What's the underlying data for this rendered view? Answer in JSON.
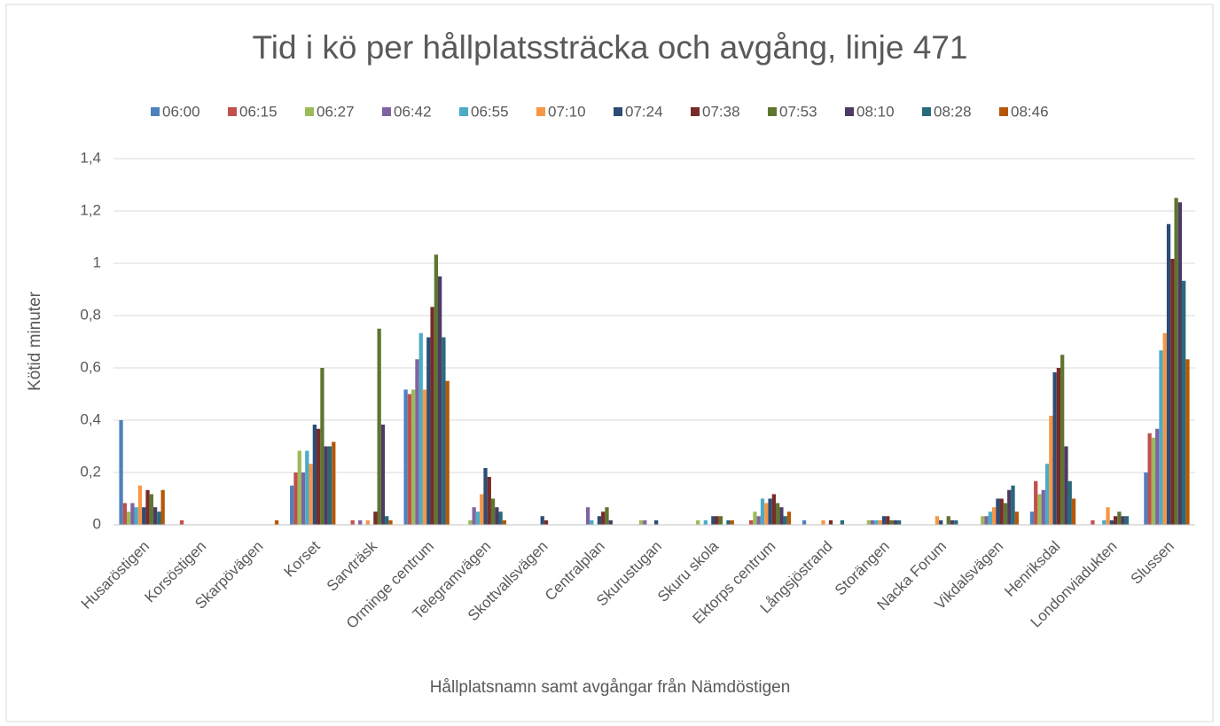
{
  "chart_data": {
    "type": "bar",
    "title": "Tid i kö per hållplatssträcka och avgång, linje 471",
    "x_label": "Hållplatsnamn samt avgångar från Nämdöstigen",
    "y_label": "Kötid minuter",
    "categories": [
      "Husaröstigen",
      "Korsöstigen",
      "Skarpövägen",
      "Korset",
      "Sarvträsk",
      "Orminge centrum",
      "Telegramvägen",
      "Skottvallsvägen",
      "Centralplan",
      "Skurustugan",
      "Skuru skola",
      "Ektorps centrum",
      "Långsjöstrand",
      "Storängen",
      "Nacka Forum",
      "Vikdalsvägen",
      "Henriksdal",
      "Londonviadukten",
      "Slussen"
    ],
    "series": [
      {
        "name": "06:00",
        "color": "#4f81bd",
        "values": [
          0.4,
          0,
          0,
          0.15,
          0,
          0.517,
          0,
          0,
          0,
          0,
          0,
          0,
          0.017,
          0,
          0,
          0,
          0.05,
          0,
          0.2
        ]
      },
      {
        "name": "06:15",
        "color": "#c0504d",
        "values": [
          0.083,
          0.017,
          0,
          0.2,
          0.017,
          0.5,
          0,
          0,
          0,
          0,
          0,
          0.017,
          0,
          0,
          0,
          0,
          0.167,
          0.017,
          0.35
        ]
      },
      {
        "name": "06:27",
        "color": "#9bbb59",
        "values": [
          0.05,
          0,
          0,
          0.283,
          0,
          0.517,
          0.017,
          0,
          0,
          0.017,
          0.017,
          0.05,
          0,
          0.017,
          0,
          0.033,
          0.117,
          0,
          0.333
        ]
      },
      {
        "name": "06:42",
        "color": "#8064a2",
        "values": [
          0.083,
          0,
          0,
          0.2,
          0.017,
          0.633,
          0.067,
          0,
          0.067,
          0.017,
          0,
          0.033,
          0,
          0.017,
          0,
          0.033,
          0.133,
          0,
          0.367
        ]
      },
      {
        "name": "06:55",
        "color": "#4bacc6",
        "values": [
          0.067,
          0,
          0,
          0.283,
          0,
          0.733,
          0.05,
          0,
          0.017,
          0,
          0.017,
          0.1,
          0,
          0.017,
          0,
          0.05,
          0.233,
          0.017,
          0.667
        ]
      },
      {
        "name": "07:10",
        "color": "#f79646",
        "values": [
          0.15,
          0,
          0,
          0.233,
          0.017,
          0.517,
          0.117,
          0,
          0,
          0,
          0,
          0.083,
          0.017,
          0.017,
          0.033,
          0.067,
          0.417,
          0.067,
          0.733
        ]
      },
      {
        "name": "07:24",
        "color": "#2c4d75",
        "values": [
          0.067,
          0,
          0,
          0.383,
          0,
          0.717,
          0.217,
          0.033,
          0.033,
          0.017,
          0.033,
          0.1,
          0,
          0.033,
          0.017,
          0.1,
          0.583,
          0.017,
          1.15
        ]
      },
      {
        "name": "07:38",
        "color": "#772c2a",
        "values": [
          0.133,
          0,
          0,
          0.367,
          0.05,
          0.833,
          0.183,
          0.017,
          0.05,
          0,
          0.033,
          0.117,
          0.017,
          0.033,
          0,
          0.1,
          0.6,
          0.033,
          1.017
        ]
      },
      {
        "name": "07:53",
        "color": "#5f7530",
        "values": [
          0.117,
          0,
          0,
          0.6,
          0.75,
          1.033,
          0.1,
          0,
          0.067,
          0,
          0.033,
          0.083,
          0,
          0.017,
          0.033,
          0.083,
          0.65,
          0.05,
          1.25
        ]
      },
      {
        "name": "08:10",
        "color": "#4d3b62",
        "values": [
          0.067,
          0,
          0,
          0.3,
          0.383,
          0.95,
          0.067,
          0,
          0.017,
          0,
          0,
          0.067,
          0,
          0.017,
          0.017,
          0.133,
          0.3,
          0.033,
          1.233
        ]
      },
      {
        "name": "08:28",
        "color": "#276a7c",
        "values": [
          0.05,
          0,
          0,
          0.3,
          0.033,
          0.717,
          0.05,
          0,
          0,
          0,
          0.017,
          0.033,
          0.017,
          0.017,
          0.017,
          0.15,
          0.167,
          0.033,
          0.933
        ]
      },
      {
        "name": "08:46",
        "color": "#b65708",
        "values": [
          0.133,
          0,
          0.017,
          0.317,
          0.017,
          0.55,
          0.017,
          0,
          0,
          0,
          0.017,
          0.05,
          0,
          0,
          0,
          0.05,
          0.1,
          0,
          0.633
        ]
      }
    ],
    "ylim": [
      0,
      1.4
    ],
    "yticks": [
      0,
      {
        "value": 0.2,
        "label": "0,2"
      },
      {
        "value": 0.4,
        "label": "0,4"
      },
      {
        "value": 0.6,
        "label": "0,6"
      },
      {
        "value": 0.8,
        "label": "0,8"
      },
      1,
      {
        "value": 1.2,
        "label": "1,2"
      },
      {
        "value": 1.4,
        "label": "1,4"
      }
    ],
    "grid": true,
    "legend": "top"
  }
}
